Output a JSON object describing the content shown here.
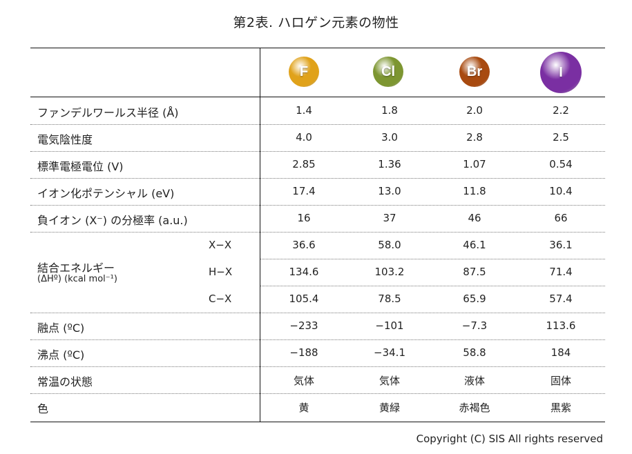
{
  "title": "第2表. ハロゲン元素の物性",
  "elements": [
    {
      "symbol": "F",
      "color": "#e0a21a"
    },
    {
      "symbol": "Cl",
      "color": "#7d9631"
    },
    {
      "symbol": "Br",
      "color": "#a84a10"
    },
    {
      "symbol": "I",
      "color": "#7a2fa2"
    }
  ],
  "rows": [
    {
      "label": "ファンデルワールス半径 (Å)",
      "values": [
        "1.4",
        "1.8",
        "2.0",
        "2.2"
      ]
    },
    {
      "label": "電気陰性度",
      "values": [
        "4.0",
        "3.0",
        "2.8",
        "2.5"
      ]
    },
    {
      "label": "標準電極電位 (V)",
      "values": [
        "2.85",
        "1.36",
        "1.07",
        "0.54"
      ]
    },
    {
      "label": "イオン化ポテンシャル (eV)",
      "values": [
        "17.4",
        "13.0",
        "11.8",
        "10.4"
      ]
    },
    {
      "label": "負イオン (X⁻) の分極率 (a.u.)",
      "values": [
        "16",
        "37",
        "46",
        "66"
      ]
    }
  ],
  "bond_energy": {
    "label": "結合エネルギー",
    "unit": "(ΔHº) (kcal mol⁻¹)",
    "subrows": [
      {
        "label": "X−X",
        "values": [
          "36.6",
          "58.0",
          "46.1",
          "36.1"
        ]
      },
      {
        "label": "H−X",
        "values": [
          "134.6",
          "103.2",
          "87.5",
          "71.4"
        ]
      },
      {
        "label": "C−X",
        "values": [
          "105.4",
          "78.5",
          "65.9",
          "57.4"
        ]
      }
    ]
  },
  "rows_after": [
    {
      "label": "融点 (ºC)",
      "values": [
        "−233",
        "−101",
        "−7.3",
        "113.6"
      ]
    },
    {
      "label": "沸点 (ºC)",
      "values": [
        "−188",
        "−34.1",
        "58.8",
        "184"
      ]
    },
    {
      "label": "常温の状態",
      "values": [
        "気体",
        "気体",
        "液体",
        "固体"
      ]
    },
    {
      "label": "色",
      "values": [
        "黄",
        "黄緑",
        "赤褐色",
        "黒紫"
      ]
    }
  ],
  "copyright": "Copyright (C) SIS All rights reserved"
}
